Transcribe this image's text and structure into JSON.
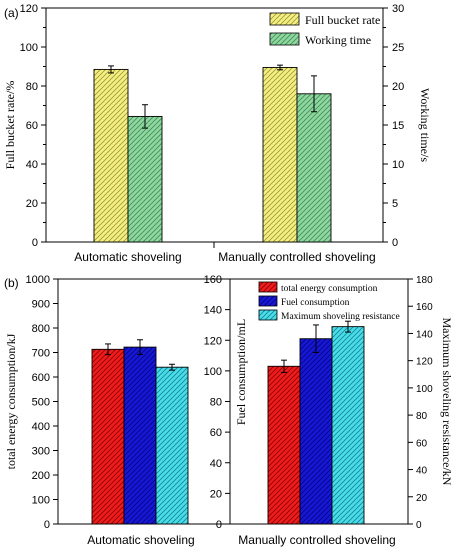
{
  "chart_data": [
    {
      "panel": "(a)",
      "type": "bar",
      "categories": [
        "Automatic shoveling",
        "Manually controlled shoveling"
      ],
      "ylabel": "Full bucket rate/%",
      "ylim": [
        0,
        120
      ],
      "yticks": [
        "0",
        "20",
        "40",
        "60",
        "80",
        "100",
        "120"
      ],
      "ylabel_right": "Working time/s",
      "ylim_right": [
        0,
        30
      ],
      "yticks_right": [
        "0",
        "5",
        "10",
        "15",
        "20",
        "25",
        "30"
      ],
      "legend_position": "top-right",
      "series": [
        {
          "name": "Full bucket rate",
          "axis": "left",
          "color": "#f2ee8a",
          "hatch": "#a59a1e",
          "values": [
            88.5,
            89.5
          ],
          "errors": [
            1.8,
            1.2
          ]
        },
        {
          "name": "Working time",
          "axis": "right",
          "color": "#8fd6a0",
          "hatch": "#3f8f56",
          "values": [
            16.1,
            19.0
          ],
          "errors": [
            1.5,
            2.3
          ]
        }
      ]
    },
    {
      "panel": "(b)",
      "type": "bar",
      "categories": [
        "Automatic shoveling",
        "Manually controlled shoveling"
      ],
      "ylabel": "total energy consumption/kJ",
      "ylim": [
        0,
        1000
      ],
      "yticks": [
        "0",
        "100",
        "200",
        "300",
        "400",
        "500",
        "600",
        "700",
        "800",
        "900",
        "1000"
      ],
      "ylabel_middle": "Fuel consumption/mL",
      "ylim_middle": [
        0,
        160
      ],
      "yticks_middle": [
        "0",
        "20",
        "40",
        "60",
        "80",
        "100",
        "120",
        "140",
        "160"
      ],
      "ylabel_right": "Maximum shoveling resistance/kN",
      "ylim_right": [
        0,
        180
      ],
      "yticks_right": [
        "0",
        "20",
        "40",
        "60",
        "80",
        "100",
        "120",
        "140",
        "160",
        "180"
      ],
      "legend_position": "top-right",
      "series": [
        {
          "name": "total energy consumption",
          "color": "#ee1c1c",
          "hatch": "#8a0000",
          "values": [
            713,
            103
          ],
          "errors": [
            22,
            4
          ]
        },
        {
          "name": "Fuel consumption",
          "color": "#1717d6",
          "hatch": "#050580",
          "values": [
            722,
            121
          ],
          "errors": [
            30,
            9
          ]
        },
        {
          "name": "Maximum shoveling resistance",
          "color": "#49dcea",
          "hatch": "#15858f",
          "values": [
            640,
            145
          ],
          "errors": [
            12,
            4
          ]
        }
      ]
    }
  ]
}
